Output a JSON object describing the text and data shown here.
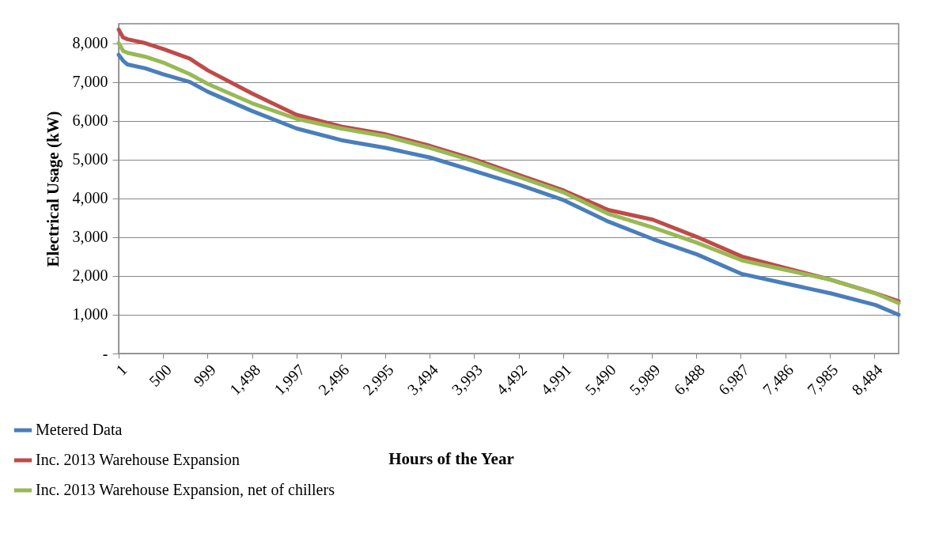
{
  "chart_data": {
    "type": "line",
    "xlabel": "Hours of the Year",
    "ylabel": "Electrical Usage (kW)",
    "x": [
      1,
      50,
      100,
      300,
      500,
      800,
      1000,
      1500,
      2000,
      2500,
      3000,
      3500,
      4000,
      4500,
      5000,
      5500,
      6000,
      6500,
      7000,
      7500,
      8000,
      8500,
      8760
    ],
    "series": [
      {
        "name": "Metered Data",
        "color": "#4a7ebb",
        "values": [
          7700,
          7550,
          7450,
          7350,
          7200,
          7000,
          6750,
          6250,
          5800,
          5500,
          5300,
          5050,
          4700,
          4350,
          3950,
          3400,
          2950,
          2550,
          2050,
          1800,
          1550,
          1250,
          1000
        ]
      },
      {
        "name": "Inc. 2013 Warehouse Expansion",
        "color": "#be4b48",
        "values": [
          8350,
          8150,
          8100,
          8000,
          7850,
          7600,
          7300,
          6700,
          6150,
          5850,
          5650,
          5350,
          5000,
          4600,
          4200,
          3700,
          3450,
          3000,
          2500,
          2200,
          1900,
          1550,
          1350
        ]
      },
      {
        "name": "Inc. 2013 Warehouse Expansion, net of chillers",
        "color": "#98b954",
        "values": [
          8000,
          7800,
          7750,
          7650,
          7500,
          7200,
          6950,
          6450,
          6050,
          5800,
          5600,
          5300,
          4950,
          4550,
          4150,
          3600,
          3250,
          2850,
          2400,
          2150,
          1900,
          1550,
          1300
        ]
      }
    ],
    "xlim": [
      1,
      8760
    ],
    "xticks": [
      1,
      500,
      999,
      {
        "value": 1498,
        "label": "1,498"
      },
      {
        "value": 1997,
        "label": "1,997"
      },
      {
        "value": 2496,
        "label": "2,496"
      },
      {
        "value": 2995,
        "label": "2,995"
      },
      {
        "value": 3494,
        "label": "3,494"
      },
      {
        "value": 3993,
        "label": "3,993"
      },
      {
        "value": 4492,
        "label": "4,492"
      },
      {
        "value": 4991,
        "label": "4,991"
      },
      {
        "value": 5490,
        "label": "5,490"
      },
      {
        "value": 5989,
        "label": "5,989"
      },
      {
        "value": 6488,
        "label": "6,488"
      },
      {
        "value": 6987,
        "label": "6,987"
      },
      {
        "value": 7486,
        "label": "7,486"
      },
      {
        "value": 7985,
        "label": "7,985"
      },
      {
        "value": 8484,
        "label": "8,484"
      }
    ],
    "ylim": [
      0,
      8500
    ],
    "yticks": [
      {
        "value": 0,
        "label": "-"
      },
      {
        "value": 1000,
        "label": "1,000"
      },
      {
        "value": 2000,
        "label": "2,000"
      },
      {
        "value": 3000,
        "label": "3,000"
      },
      {
        "value": 4000,
        "label": "4,000"
      },
      {
        "value": 5000,
        "label": "5,000"
      },
      {
        "value": 6000,
        "label": "6,000"
      },
      {
        "value": 7000,
        "label": "7,000"
      },
      {
        "value": 8000,
        "label": "8,000"
      }
    ],
    "grid": "y",
    "legend": "bottom left",
    "marker": "none",
    "line_style": "solid"
  }
}
